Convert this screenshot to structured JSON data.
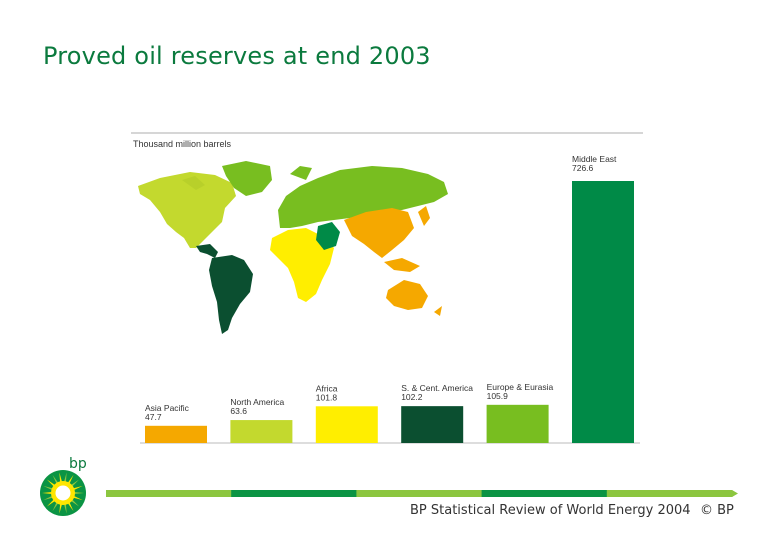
{
  "slide": {
    "title": "Proved oil reserves at end 2003",
    "footer": "BP Statistical Review of World Energy 2004",
    "copyright": "© BP",
    "logo_text": "bp"
  },
  "colors": {
    "title": "#0b7a3e",
    "footer_bar": [
      "#8cc63f",
      "#0b9444",
      "#8cc63f",
      "#0b9444",
      "#8cc63f"
    ]
  },
  "chart_data": {
    "type": "bar",
    "unit_label": "Thousand million barrels",
    "categories": [
      "Asia Pacific",
      "North America",
      "Africa",
      "S. & Cent. America",
      "Europe & Eurasia",
      "Middle East"
    ],
    "values": [
      47.7,
      63.6,
      101.8,
      102.2,
      105.9,
      726.6
    ],
    "value_labels": [
      "47.7",
      "63.6",
      "101.8",
      "102.2",
      "105.9",
      "726.6"
    ],
    "colors": [
      "#f5a800",
      "#c3d92e",
      "#ffee00",
      "#0b4f30",
      "#78be20",
      "#008a47"
    ],
    "ylim": [
      0,
      726.6
    ],
    "grid": false,
    "background": "world map"
  }
}
